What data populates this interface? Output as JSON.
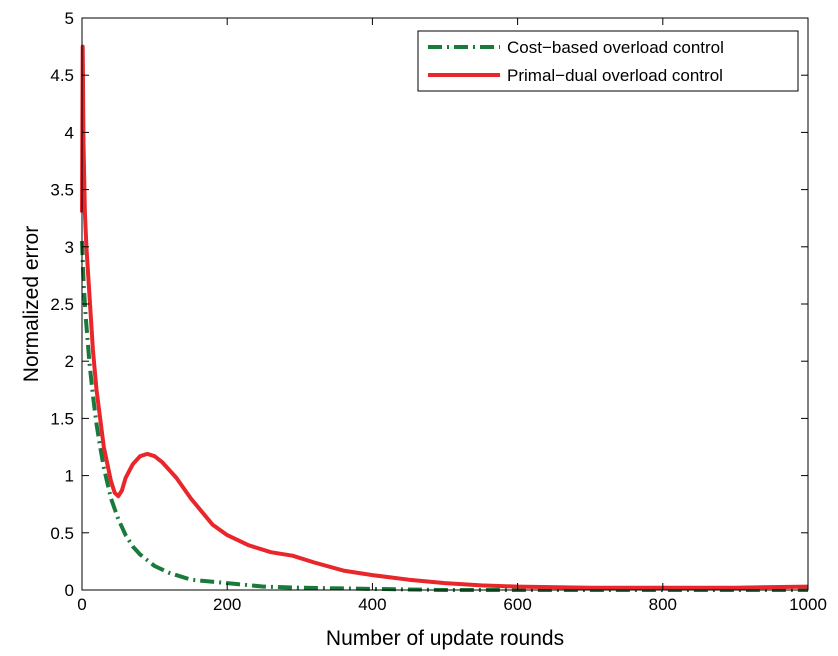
{
  "chart_data": {
    "type": "line",
    "title": "",
    "xlabel": "Number of update rounds",
    "ylabel": "Normalized error",
    "xlim": [
      0,
      1000
    ],
    "ylim": [
      0,
      5
    ],
    "xticks": [
      0,
      200,
      400,
      600,
      800,
      1000
    ],
    "xtick_labels": [
      "0",
      "200",
      "400",
      "600",
      "800",
      "1000"
    ],
    "yticks": [
      0,
      0.5,
      1,
      1.5,
      2,
      2.5,
      3,
      3.5,
      4,
      4.5,
      5
    ],
    "ytick_labels": [
      "0",
      "0.5",
      "1",
      "1.5",
      "2",
      "2.5",
      "3",
      "3.5",
      "4",
      "4.5",
      "5"
    ],
    "grid": false,
    "legend_position": "top-right",
    "series": [
      {
        "name": "Cost−based overload control",
        "color": "#1a7a3c",
        "style": "dash-dot",
        "x": [
          0,
          2,
          5,
          10,
          15,
          20,
          25,
          30,
          40,
          50,
          60,
          70,
          80,
          100,
          120,
          150,
          200,
          250,
          300,
          400,
          500,
          600,
          700,
          800,
          900,
          1000
        ],
        "y": [
          3.05,
          2.7,
          2.4,
          2.0,
          1.7,
          1.45,
          1.25,
          1.07,
          0.8,
          0.62,
          0.48,
          0.38,
          0.31,
          0.21,
          0.15,
          0.09,
          0.06,
          0.03,
          0.02,
          0.01,
          0.0,
          0.0,
          0.0,
          0.0,
          0.0,
          0.0
        ]
      },
      {
        "name": "Primal−dual overload control",
        "color": "#e8262b",
        "style": "solid",
        "x": [
          0,
          1,
          2,
          4,
          6,
          10,
          15,
          20,
          30,
          40,
          45,
          50,
          55,
          60,
          70,
          80,
          90,
          100,
          110,
          130,
          150,
          180,
          200,
          230,
          260,
          290,
          320,
          360,
          400,
          450,
          500,
          550,
          600,
          700,
          800,
          900,
          1000
        ],
        "y": [
          3.3,
          4.75,
          3.9,
          3.3,
          3.0,
          2.6,
          2.1,
          1.75,
          1.25,
          0.95,
          0.85,
          0.82,
          0.87,
          0.98,
          1.1,
          1.17,
          1.19,
          1.17,
          1.12,
          0.98,
          0.8,
          0.57,
          0.48,
          0.39,
          0.33,
          0.3,
          0.24,
          0.17,
          0.13,
          0.09,
          0.06,
          0.04,
          0.03,
          0.02,
          0.02,
          0.02,
          0.03
        ]
      }
    ]
  }
}
